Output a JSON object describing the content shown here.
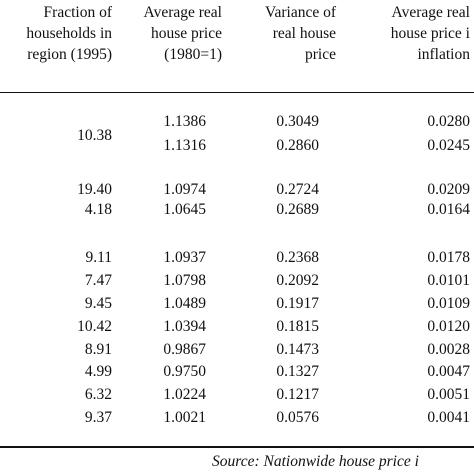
{
  "headers": [
    [
      "Fraction of",
      "households in",
      "region (1995)"
    ],
    [
      "Average real",
      "house price",
      "(1980=1)"
    ],
    [
      "Variance of",
      "real house",
      "price"
    ],
    [
      "Average real",
      "house price i",
      "inflation"
    ]
  ],
  "groups": [
    [
      {
        "fraction": "10.38",
        "price": "1.1386",
        "variance": "0.3049",
        "inflation": "0.0280"
      },
      {
        "fraction": "",
        "price": "1.1316",
        "variance": "0.2860",
        "inflation": "0.0245"
      }
    ],
    [
      {
        "fraction": "19.40",
        "price": "1.0974",
        "variance": "0.2724",
        "inflation": "0.0209"
      },
      {
        "fraction": "4.18",
        "price": "1.0645",
        "variance": "0.2689",
        "inflation": "0.0164"
      }
    ],
    [
      {
        "fraction": "9.11",
        "price": "1.0937",
        "variance": "0.2368",
        "inflation": "0.0178"
      },
      {
        "fraction": "7.47",
        "price": "1.0798",
        "variance": "0.2092",
        "inflation": "0.0101"
      },
      {
        "fraction": "9.45",
        "price": "1.0489",
        "variance": "0.1917",
        "inflation": "0.0109"
      },
      {
        "fraction": "10.42",
        "price": "1.0394",
        "variance": "0.1815",
        "inflation": "0.0120"
      },
      {
        "fraction": "8.91",
        "price": "0.9867",
        "variance": "0.1473",
        "inflation": "0.0028"
      },
      {
        "fraction": "4.99",
        "price": "0.9750",
        "variance": "0.1327",
        "inflation": "0.0047"
      },
      {
        "fraction": "6.32",
        "price": "1.0224",
        "variance": "0.1217",
        "inflation": "0.0051"
      },
      {
        "fraction": "9.37",
        "price": "1.0021",
        "variance": "0.0576",
        "inflation": "0.0041"
      }
    ]
  ],
  "source": "Source: Nationwide house price i"
}
